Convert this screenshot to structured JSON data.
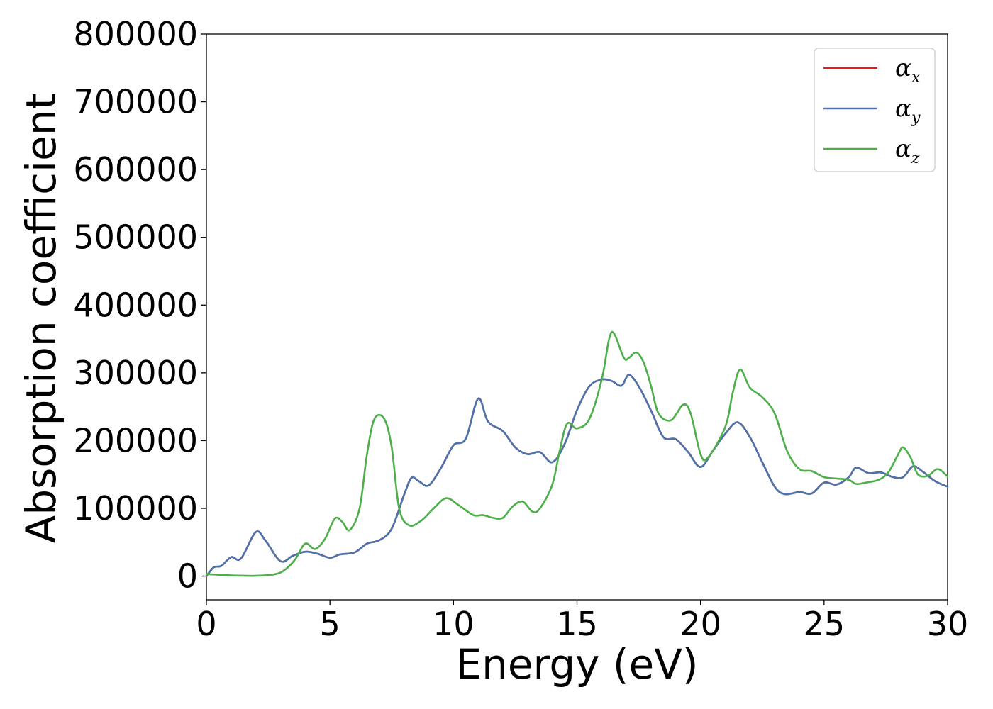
{
  "chart_data": {
    "type": "line",
    "title": "",
    "xlabel": "Energy (eV)",
    "ylabel": "Absorption coefficient",
    "xlim": [
      0,
      30
    ],
    "ylim": [
      -35000,
      800000
    ],
    "x_ticks": [
      "0",
      "5",
      "10",
      "15",
      "20",
      "25",
      "30"
    ],
    "y_ticks": [
      "0",
      "100000",
      "200000",
      "300000",
      "400000",
      "500000",
      "600000",
      "700000",
      "800000"
    ],
    "grid": false,
    "legend_position": "top-right",
    "series": [
      {
        "name": "α_x",
        "legend_symbol": "α",
        "legend_subscript": "x",
        "color": "#e41a1c",
        "points": [
          [
            0,
            0
          ],
          [
            0.3,
            13000
          ],
          [
            0.6,
            15000
          ],
          [
            1.0,
            28000
          ],
          [
            1.4,
            26000
          ],
          [
            2.0,
            65000
          ],
          [
            2.4,
            52000
          ],
          [
            3.0,
            22000
          ],
          [
            3.5,
            30000
          ],
          [
            4.0,
            36000
          ],
          [
            4.5,
            33000
          ],
          [
            5.0,
            27000
          ],
          [
            5.4,
            32000
          ],
          [
            6.0,
            35000
          ],
          [
            6.5,
            48000
          ],
          [
            7.0,
            53000
          ],
          [
            7.5,
            70000
          ],
          [
            8.0,
            120000
          ],
          [
            8.3,
            145000
          ],
          [
            8.6,
            140000
          ],
          [
            9.0,
            134000
          ],
          [
            9.5,
            160000
          ],
          [
            10.0,
            193000
          ],
          [
            10.5,
            203000
          ],
          [
            11.0,
            262000
          ],
          [
            11.4,
            228000
          ],
          [
            12.0,
            214000
          ],
          [
            12.5,
            190000
          ],
          [
            13.0,
            180000
          ],
          [
            13.5,
            183000
          ],
          [
            14.0,
            168000
          ],
          [
            14.5,
            195000
          ],
          [
            15.0,
            245000
          ],
          [
            15.5,
            280000
          ],
          [
            16.0,
            290000
          ],
          [
            16.4,
            288000
          ],
          [
            16.8,
            281000
          ],
          [
            17.1,
            297000
          ],
          [
            17.5,
            280000
          ],
          [
            18.0,
            244000
          ],
          [
            18.5,
            205000
          ],
          [
            19.0,
            202000
          ],
          [
            19.5,
            183000
          ],
          [
            20.0,
            161000
          ],
          [
            20.5,
            185000
          ],
          [
            21.0,
            210000
          ],
          [
            21.5,
            227000
          ],
          [
            22.0,
            205000
          ],
          [
            22.5,
            168000
          ],
          [
            23.0,
            132000
          ],
          [
            23.4,
            121000
          ],
          [
            24.0,
            124000
          ],
          [
            24.5,
            122000
          ],
          [
            25.0,
            138000
          ],
          [
            25.5,
            135000
          ],
          [
            26.0,
            146000
          ],
          [
            26.3,
            160000
          ],
          [
            26.8,
            152000
          ],
          [
            27.3,
            153000
          ],
          [
            27.8,
            146000
          ],
          [
            28.2,
            146000
          ],
          [
            28.6,
            162000
          ],
          [
            29.0,
            154000
          ],
          [
            29.5,
            140000
          ],
          [
            30.0,
            132000
          ]
        ]
      },
      {
        "name": "α_y",
        "legend_symbol": "α",
        "legend_subscript": "y",
        "color": "#4a74ad",
        "points": [
          [
            0,
            0
          ],
          [
            0.3,
            13000
          ],
          [
            0.6,
            15000
          ],
          [
            1.0,
            28000
          ],
          [
            1.4,
            26000
          ],
          [
            2.0,
            65000
          ],
          [
            2.4,
            52000
          ],
          [
            3.0,
            22000
          ],
          [
            3.5,
            30000
          ],
          [
            4.0,
            36000
          ],
          [
            4.5,
            33000
          ],
          [
            5.0,
            27000
          ],
          [
            5.4,
            32000
          ],
          [
            6.0,
            35000
          ],
          [
            6.5,
            48000
          ],
          [
            7.0,
            53000
          ],
          [
            7.5,
            70000
          ],
          [
            8.0,
            120000
          ],
          [
            8.3,
            145000
          ],
          [
            8.6,
            140000
          ],
          [
            9.0,
            134000
          ],
          [
            9.5,
            160000
          ],
          [
            10.0,
            193000
          ],
          [
            10.5,
            203000
          ],
          [
            11.0,
            262000
          ],
          [
            11.4,
            228000
          ],
          [
            12.0,
            214000
          ],
          [
            12.5,
            190000
          ],
          [
            13.0,
            180000
          ],
          [
            13.5,
            183000
          ],
          [
            14.0,
            168000
          ],
          [
            14.5,
            195000
          ],
          [
            15.0,
            245000
          ],
          [
            15.5,
            280000
          ],
          [
            16.0,
            290000
          ],
          [
            16.4,
            288000
          ],
          [
            16.8,
            281000
          ],
          [
            17.1,
            297000
          ],
          [
            17.5,
            280000
          ],
          [
            18.0,
            244000
          ],
          [
            18.5,
            205000
          ],
          [
            19.0,
            202000
          ],
          [
            19.5,
            183000
          ],
          [
            20.0,
            161000
          ],
          [
            20.5,
            185000
          ],
          [
            21.0,
            210000
          ],
          [
            21.5,
            227000
          ],
          [
            22.0,
            205000
          ],
          [
            22.5,
            168000
          ],
          [
            23.0,
            132000
          ],
          [
            23.4,
            121000
          ],
          [
            24.0,
            124000
          ],
          [
            24.5,
            122000
          ],
          [
            25.0,
            138000
          ],
          [
            25.5,
            135000
          ],
          [
            26.0,
            146000
          ],
          [
            26.3,
            160000
          ],
          [
            26.8,
            152000
          ],
          [
            27.3,
            153000
          ],
          [
            27.8,
            146000
          ],
          [
            28.2,
            146000
          ],
          [
            28.6,
            162000
          ],
          [
            29.0,
            154000
          ],
          [
            29.5,
            140000
          ],
          [
            30.0,
            132000
          ]
        ]
      },
      {
        "name": "α_z",
        "legend_symbol": "α",
        "legend_subscript": "z",
        "color": "#4daf4a",
        "points": [
          [
            0,
            3000
          ],
          [
            1.0,
            1000
          ],
          [
            2.0,
            500
          ],
          [
            2.8,
            3000
          ],
          [
            3.2,
            10000
          ],
          [
            3.6,
            25000
          ],
          [
            4.0,
            48000
          ],
          [
            4.4,
            40000
          ],
          [
            4.8,
            55000
          ],
          [
            5.2,
            85000
          ],
          [
            5.5,
            80000
          ],
          [
            5.8,
            68000
          ],
          [
            6.2,
            100000
          ],
          [
            6.5,
            180000
          ],
          [
            6.8,
            232000
          ],
          [
            7.2,
            232000
          ],
          [
            7.5,
            190000
          ],
          [
            7.8,
            100000
          ],
          [
            8.2,
            75000
          ],
          [
            8.7,
            82000
          ],
          [
            9.2,
            100000
          ],
          [
            9.7,
            115000
          ],
          [
            10.2,
            105000
          ],
          [
            10.8,
            90000
          ],
          [
            11.2,
            90000
          ],
          [
            11.6,
            86000
          ],
          [
            12.0,
            86000
          ],
          [
            12.4,
            103000
          ],
          [
            12.8,
            110000
          ],
          [
            13.2,
            95000
          ],
          [
            13.5,
            100000
          ],
          [
            14.0,
            135000
          ],
          [
            14.3,
            185000
          ],
          [
            14.6,
            225000
          ],
          [
            15.0,
            218000
          ],
          [
            15.5,
            232000
          ],
          [
            16.0,
            290000
          ],
          [
            16.3,
            350000
          ],
          [
            16.5,
            358000
          ],
          [
            16.9,
            322000
          ],
          [
            17.1,
            322000
          ],
          [
            17.4,
            330000
          ],
          [
            17.7,
            315000
          ],
          [
            18.0,
            280000
          ],
          [
            18.3,
            240000
          ],
          [
            18.8,
            230000
          ],
          [
            19.3,
            253000
          ],
          [
            19.6,
            240000
          ],
          [
            20.0,
            180000
          ],
          [
            20.3,
            175000
          ],
          [
            21.0,
            220000
          ],
          [
            21.3,
            270000
          ],
          [
            21.6,
            305000
          ],
          [
            22.0,
            278000
          ],
          [
            22.5,
            264000
          ],
          [
            23.0,
            240000
          ],
          [
            23.5,
            185000
          ],
          [
            24.0,
            158000
          ],
          [
            24.5,
            155000
          ],
          [
            25.0,
            146000
          ],
          [
            25.5,
            144000
          ],
          [
            26.0,
            142000
          ],
          [
            26.3,
            136000
          ],
          [
            26.7,
            138000
          ],
          [
            27.2,
            142000
          ],
          [
            27.6,
            153000
          ],
          [
            28.0,
            180000
          ],
          [
            28.2,
            190000
          ],
          [
            28.5,
            175000
          ],
          [
            28.8,
            150000
          ],
          [
            29.2,
            148000
          ],
          [
            29.6,
            158000
          ],
          [
            30.0,
            147000
          ]
        ]
      }
    ]
  }
}
